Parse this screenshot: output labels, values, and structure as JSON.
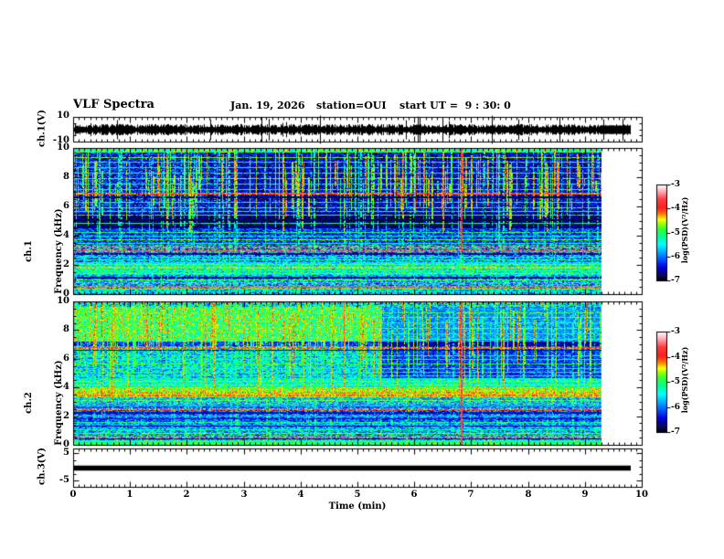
{
  "header": {
    "title": "VLF Spectra",
    "date": "Jan. 19, 2026",
    "station": "station=OUI",
    "start_ut": "start UT =  9 : 30: 0"
  },
  "axes": {
    "time": {
      "label": "Time (min)",
      "tick_labels": [
        "0",
        "1",
        "2",
        "3",
        "4",
        "5",
        "6",
        "7",
        "8",
        "9",
        "10"
      ],
      "range_min": [
        0,
        10
      ],
      "minor_step_min": 0.1
    },
    "ch1v": {
      "label": "ch.1(V)",
      "tick_labels": [
        "10",
        "-10"
      ],
      "range_v": [
        -10,
        10
      ]
    },
    "ch1f": {
      "label_line1": "ch.1",
      "label_line2": "Frequency (kHz)",
      "tick_labels": [
        "0",
        "2",
        "4",
        "6",
        "8",
        "10"
      ],
      "range_khz": [
        0,
        10
      ]
    },
    "ch2f": {
      "label_line1": "ch.2",
      "label_line2": "Frequency (kHz)",
      "tick_labels": [
        "0",
        "2",
        "4",
        "6",
        "8",
        "10"
      ],
      "range_khz": [
        0,
        10
      ]
    },
    "ch3v": {
      "label": "ch.3(V)",
      "tick_labels": [
        "5",
        "-5"
      ],
      "range_v": [
        -5,
        5
      ]
    }
  },
  "colorbars": [
    {
      "tick_labels": [
        "-3",
        "-4",
        "-5",
        "-6",
        "-7"
      ],
      "unit": "log(PSD)(V²/Hz)",
      "zrange": [
        -7,
        -3
      ]
    },
    {
      "tick_labels": [
        "-3",
        "-4",
        "-5",
        "-6",
        "-7"
      ],
      "unit": "log(PSD)(V²/Hz)",
      "zrange": [
        -7,
        -3
      ]
    }
  ],
  "chart_data": {
    "colormap": {
      "positions": [
        0,
        0.06,
        0.14,
        0.22,
        0.3,
        0.38,
        0.46,
        0.54,
        0.6,
        0.64,
        0.7,
        0.76,
        0.85,
        0.93,
        1.0
      ],
      "colors": [
        "#000000",
        "#0a0a5a",
        "#0000dc",
        "#0050ff",
        "#00aaff",
        "#00ffff",
        "#00ff96",
        "#32ff32",
        "#a0ff00",
        "#ffff00",
        "#ff7800",
        "#ff1e1e",
        "#ff3c3c",
        "#ffaab4",
        "#ffffff"
      ]
    },
    "panels": [
      {
        "type": "line",
        "name": "ch1-waveform",
        "ylabel": "ch.1(V)",
        "ylim": [
          -10,
          10
        ],
        "description": "continuous black broadband noise centered on 0 V, ~±2 V with sporadic ±6-9 V spikes",
        "noise_amp_v": 2.0,
        "spike_amp_v": 7.0,
        "data_tmax_min": 9.8,
        "seed": 7
      },
      {
        "type": "heatmap",
        "name": "ch1-spectrogram",
        "ylim_khz": [
          0,
          10
        ],
        "zlim_log_psd": [
          -7,
          -3
        ],
        "data_tmax_min": 9.3,
        "seed": 11,
        "bands": [
          {
            "f0": 9.75,
            "f1": 10.01,
            "base": 0.5,
            "var": 0.15
          },
          {
            "f0": 5.6,
            "f1": 9.75,
            "base": 0.17,
            "var": 0.13
          },
          {
            "f0": 4.55,
            "f1": 5.6,
            "base": 0.07,
            "var": 0.06
          },
          {
            "f0": 3.4,
            "f1": 4.55,
            "base": 0.2,
            "var": 0.12
          },
          {
            "f0": 2.25,
            "f1": 3.4,
            "base": 0.28,
            "var": 0.15
          },
          {
            "f0": 1.35,
            "f1": 2.25,
            "base": 0.4,
            "var": 0.13
          },
          {
            "f0": 0.45,
            "f1": 1.35,
            "base": 0.3,
            "var": 0.15
          },
          {
            "f0": 0.0,
            "f1": 0.45,
            "base": 0.35,
            "var": 0.18
          }
        ],
        "regions": [
          {
            "t0": 2.35,
            "t1": 9.3,
            "f0": 5.6,
            "f1": 9.75,
            "mul": 0.75
          }
        ],
        "hlines": [
          {
            "f": 9.45,
            "t": 0.58,
            "w": 1
          },
          {
            "f": 9.1,
            "t": 0.5,
            "w": 1
          },
          {
            "f": 8.75,
            "t": 0.45,
            "w": 1
          },
          {
            "f": 8.35,
            "t": 0.52,
            "w": 1
          },
          {
            "f": 8.0,
            "t": 0.55,
            "w": 1
          },
          {
            "f": 7.6,
            "t": 0.48,
            "w": 1
          },
          {
            "f": 7.25,
            "t": 0.5,
            "w": 1
          },
          {
            "f": 7.0,
            "t": 0.76,
            "w": 2
          },
          {
            "f": 6.7,
            "t": 0.05,
            "w": 2
          },
          {
            "f": 6.35,
            "t": 0.52,
            "w": 1
          },
          {
            "f": 6.0,
            "t": 0.55,
            "w": 1
          },
          {
            "f": 5.75,
            "t": 0.45,
            "w": 1
          },
          {
            "f": 5.45,
            "t": 0.5,
            "w": 1
          },
          {
            "f": 5.15,
            "t": 0.05,
            "w": 2
          },
          {
            "f": 4.9,
            "t": 0.45,
            "w": 1
          },
          {
            "f": 4.3,
            "t": 0.52,
            "w": 1
          },
          {
            "f": 4.05,
            "t": 0.4,
            "w": 1
          },
          {
            "f": 3.8,
            "t": 0.55,
            "w": 1
          },
          {
            "f": 3.5,
            "t": 0.45,
            "w": 1
          },
          {
            "f": 3.25,
            "t": 0.7,
            "w": 1
          },
          {
            "f": 3.0,
            "t": 0.78,
            "w": 2
          },
          {
            "f": 2.85,
            "t": 0.08,
            "w": 2
          },
          {
            "f": 2.6,
            "t": 0.5,
            "w": 1
          },
          {
            "f": 2.4,
            "t": 0.45,
            "w": 1
          },
          {
            "f": 2.1,
            "t": 0.55,
            "w": 1
          },
          {
            "f": 1.9,
            "t": 0.6,
            "w": 2
          },
          {
            "f": 1.65,
            "t": 0.5,
            "w": 1
          },
          {
            "f": 1.45,
            "t": 0.55,
            "w": 1
          },
          {
            "f": 1.2,
            "t": 0.08,
            "w": 2
          },
          {
            "f": 1.0,
            "t": 0.52,
            "w": 1
          },
          {
            "f": 0.8,
            "t": 0.7,
            "w": 1
          },
          {
            "f": 0.55,
            "t": 0.78,
            "w": 2
          },
          {
            "f": 0.4,
            "t": 0.5,
            "w": 1
          },
          {
            "f": 0.2,
            "t": 0.45,
            "w": 1
          }
        ],
        "vstreaks": [
          {
            "count": 150,
            "fTop": [
              7.5,
              10
            ],
            "fBot": [
              4.2,
              7.5
            ],
            "t": [
              0.5,
              0.72
            ]
          },
          {
            "count": 60,
            "fTop": [
              9.0,
              10
            ],
            "fBot": [
              5.5,
              8.0
            ],
            "t": [
              0.55,
              0.75
            ]
          },
          {
            "count": 90,
            "fTop": [
              9.8,
              10
            ],
            "fBot": [
              0,
              0.3
            ],
            "t": [
              0.36,
              0.5
            ],
            "skip": 0.45
          }
        ],
        "red_streaks": [
          {
            "t_min": 0.45,
            "f0": 4,
            "f1": 10,
            "bright": false
          },
          {
            "t_min": 2.7,
            "f0": 5,
            "f1": 10,
            "bright": false
          },
          {
            "t_min": 6.8,
            "f0": 3,
            "f1": 10,
            "bright": true
          }
        ]
      },
      {
        "type": "heatmap",
        "name": "ch2-spectrogram",
        "ylim_khz": [
          0,
          10
        ],
        "zlim_log_psd": [
          -7,
          -3
        ],
        "data_tmax_min": 9.3,
        "seed": 23,
        "bands": [
          {
            "f0": 9.7,
            "f1": 10.01,
            "base": 0.4,
            "var": 0.2
          },
          {
            "f0": 7.3,
            "f1": 9.7,
            "base": 0.52,
            "var": 0.14
          },
          {
            "f0": 6.95,
            "f1": 7.3,
            "base": 0.2,
            "var": 0.1
          },
          {
            "f0": 4.7,
            "f1": 6.95,
            "base": 0.36,
            "var": 0.16
          },
          {
            "f0": 4.05,
            "f1": 4.7,
            "base": 0.42,
            "var": 0.12
          },
          {
            "f0": 3.35,
            "f1": 4.05,
            "base": 0.6,
            "var": 0.08
          },
          {
            "f0": 2.7,
            "f1": 3.35,
            "base": 0.33,
            "var": 0.12
          },
          {
            "f0": 1.65,
            "f1": 2.7,
            "base": 0.24,
            "var": 0.12
          },
          {
            "f0": 0.35,
            "f1": 1.65,
            "base": 0.3,
            "var": 0.13
          },
          {
            "f0": 0.0,
            "f1": 0.35,
            "base": 0.48,
            "var": 0.1
          }
        ],
        "regions": [
          {
            "t0": 5.42,
            "t1": 9.3,
            "f0": 4.7,
            "f1": 9.7,
            "mul": 0.55
          }
        ],
        "hlines": [
          {
            "f": 9.3,
            "t": 0.55,
            "w": 1
          },
          {
            "f": 9.0,
            "t": 0.6,
            "w": 1
          },
          {
            "f": 8.6,
            "t": 0.5,
            "w": 1
          },
          {
            "f": 8.2,
            "t": 0.55,
            "w": 1
          },
          {
            "f": 7.8,
            "t": 0.48,
            "w": 1
          },
          {
            "f": 7.45,
            "t": 0.52,
            "w": 1
          },
          {
            "f": 6.85,
            "t": 0.72,
            "w": 2
          },
          {
            "f": 6.65,
            "t": 0.06,
            "w": 1
          },
          {
            "f": 6.3,
            "t": 0.5,
            "w": 1
          },
          {
            "f": 6.0,
            "t": 0.45,
            "w": 1
          },
          {
            "f": 5.7,
            "t": 0.52,
            "w": 1
          },
          {
            "f": 5.4,
            "t": 0.46,
            "w": 1
          },
          {
            "f": 5.1,
            "t": 0.5,
            "w": 1
          },
          {
            "f": 4.85,
            "t": 0.44,
            "w": 1
          },
          {
            "f": 4.5,
            "t": 0.55,
            "w": 1
          },
          {
            "f": 4.2,
            "t": 0.58,
            "w": 1
          },
          {
            "f": 3.95,
            "t": 0.52,
            "w": 1
          },
          {
            "f": 3.75,
            "t": 0.66,
            "w": 2
          },
          {
            "f": 3.55,
            "t": 0.7,
            "w": 2
          },
          {
            "f": 3.4,
            "t": 0.62,
            "w": 1
          },
          {
            "f": 3.15,
            "t": 0.55,
            "w": 1
          },
          {
            "f": 2.95,
            "t": 0.72,
            "w": 1
          },
          {
            "f": 2.75,
            "t": 0.3,
            "w": 1
          },
          {
            "f": 2.55,
            "t": 0.74,
            "w": 2
          },
          {
            "f": 2.3,
            "t": 0.1,
            "w": 2
          },
          {
            "f": 2.05,
            "t": 0.45,
            "w": 1
          },
          {
            "f": 1.85,
            "t": 0.12,
            "w": 1
          },
          {
            "f": 1.6,
            "t": 0.5,
            "w": 1
          },
          {
            "f": 1.35,
            "t": 0.1,
            "w": 1
          },
          {
            "f": 1.1,
            "t": 0.45,
            "w": 1
          },
          {
            "f": 0.85,
            "t": 0.55,
            "w": 1
          },
          {
            "f": 0.6,
            "t": 0.7,
            "w": 1
          },
          {
            "f": 0.45,
            "t": 0.12,
            "w": 1
          },
          {
            "f": 0.15,
            "t": 0.52,
            "w": 2
          }
        ],
        "vstreaks": [
          {
            "count": 140,
            "fTop": [
              8.0,
              10
            ],
            "fBot": [
              3.0,
              7.0
            ],
            "t": [
              0.5,
              0.7
            ]
          },
          {
            "count": 60,
            "fTop": [
              10,
              10
            ],
            "fBot": [
              6.5,
              9.0
            ],
            "t": [
              0.55,
              0.72
            ]
          },
          {
            "count": 70,
            "fTop": [
              9.8,
              10
            ],
            "fBot": [
              0,
              0.3
            ],
            "t": [
              0.36,
              0.52
            ],
            "skip": 0.45
          }
        ],
        "red_streaks": [
          {
            "t_min": 0.48,
            "f0": 2,
            "f1": 10,
            "bright": false
          },
          {
            "t_min": 1.54,
            "f0": 5,
            "f1": 10,
            "bright": false
          },
          {
            "t_min": 4.74,
            "f0": 6.5,
            "f1": 10,
            "bright": false
          },
          {
            "t_min": 6.8,
            "f0": 0,
            "f1": 10,
            "bright": true
          }
        ]
      },
      {
        "type": "line",
        "name": "ch3-waveform",
        "ylabel": "ch.3(V)",
        "ylim": [
          -5,
          5
        ],
        "description": "flat thick black trace at ~ -0.3 V for full record",
        "value_v": -0.3,
        "thickness_px": 5.5,
        "data_tmax_min": 9.8
      }
    ]
  }
}
